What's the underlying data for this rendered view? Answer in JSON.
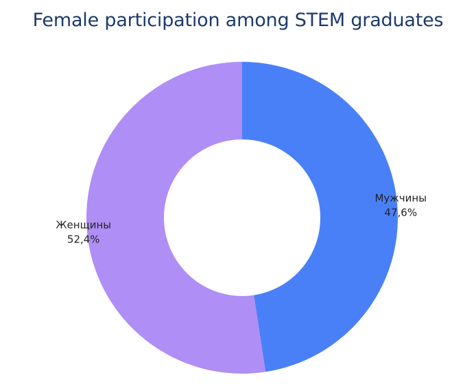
{
  "chart_data": {
    "type": "pie",
    "donut": true,
    "title": "Female participation among STEM graduates",
    "slices": [
      {
        "label": "Мужчины",
        "value": 47.6,
        "value_label": "47,6%",
        "color": "#4a80f7"
      },
      {
        "label": "Женщины",
        "value": 52.4,
        "value_label": "52,4%",
        "color": "#af8ef5"
      }
    ],
    "start_angle": "12 o'clock",
    "direction": "clockwise",
    "legend": "none",
    "labels": "outside"
  }
}
